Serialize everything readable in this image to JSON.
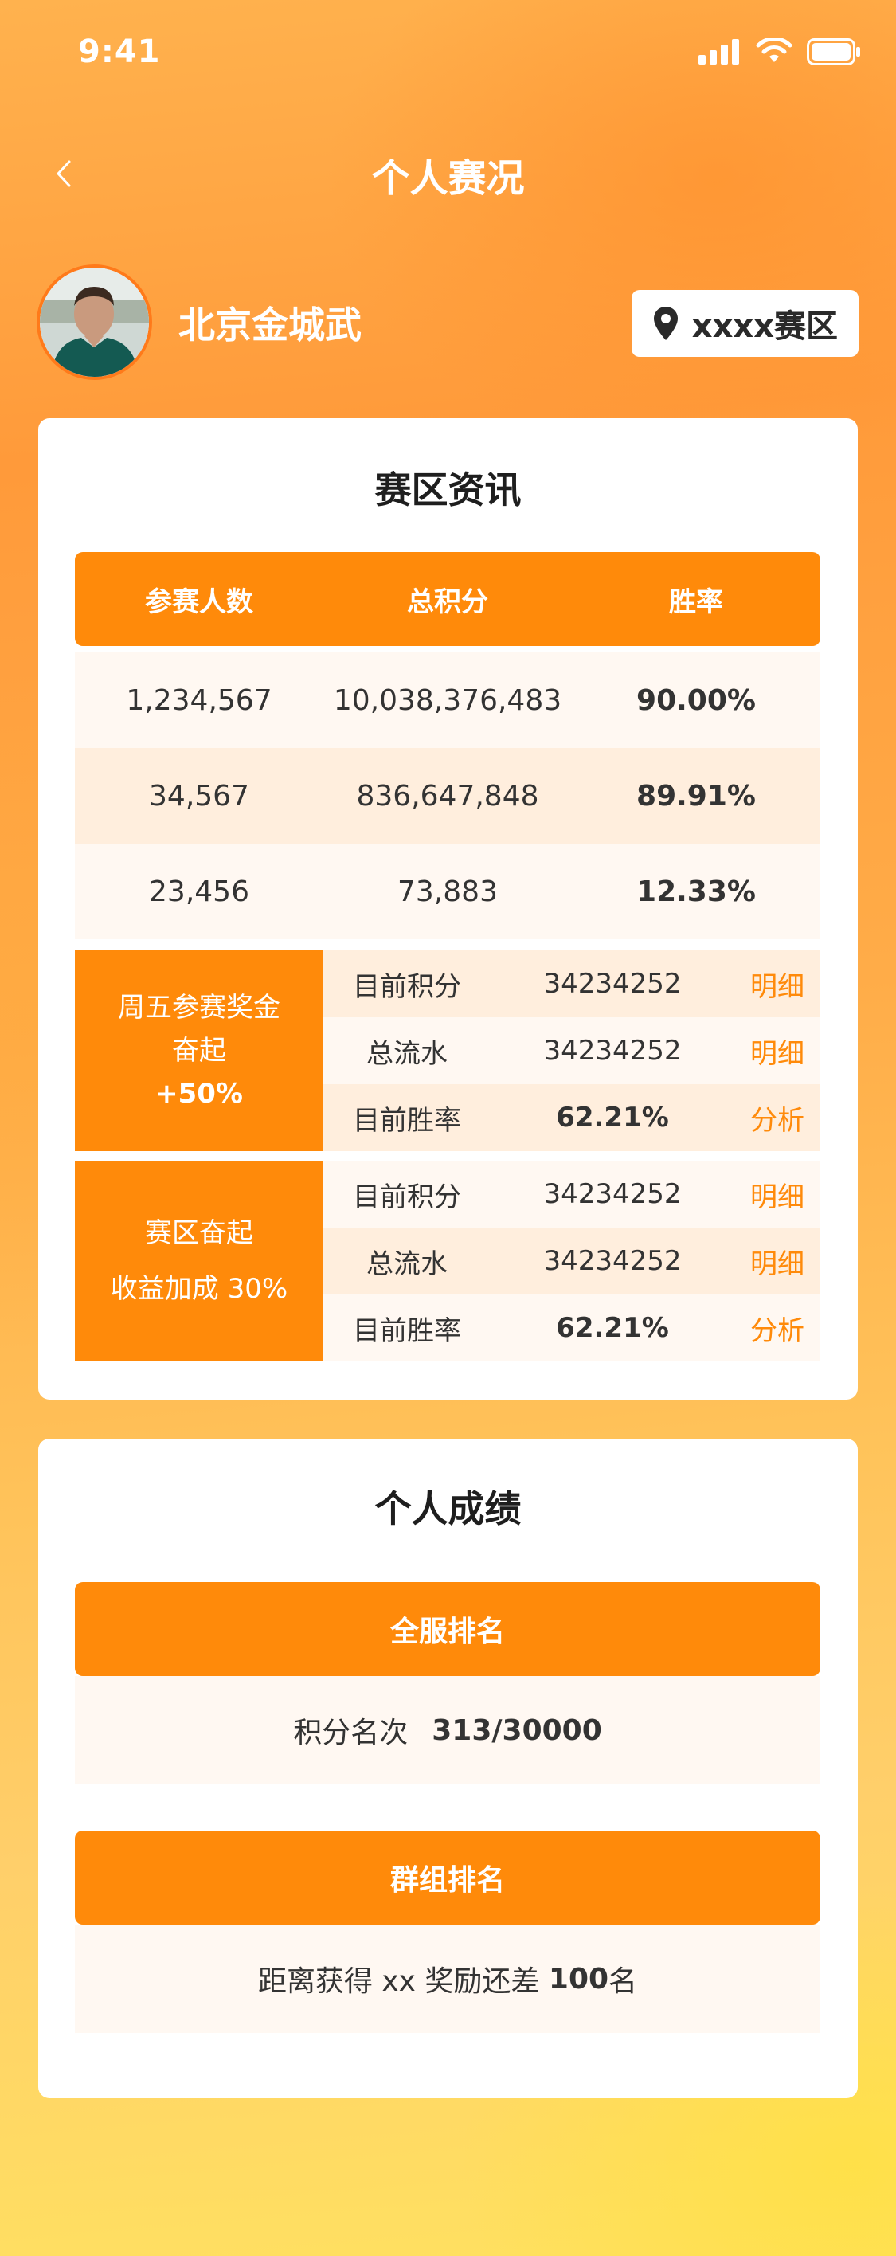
{
  "status_bar": {
    "time": "9:41"
  },
  "nav": {
    "title": "个人赛况"
  },
  "profile": {
    "name": "北京金城武",
    "region": "xxxx赛区"
  },
  "region_info": {
    "title": "赛区资讯",
    "columns": [
      "参赛人数",
      "总积分",
      "胜率"
    ],
    "rows": [
      [
        "1,234,567",
        "10,038,376,483",
        "90.00%"
      ],
      [
        "34,567",
        "836,647,848",
        "89.91%"
      ],
      [
        "23,456",
        "73,883",
        "12.33%"
      ]
    ],
    "promos": [
      {
        "lines": [
          "周五参赛奖金",
          "奋起",
          "+50%"
        ],
        "rows": [
          {
            "label": "目前积分",
            "value": "34234252",
            "link": "明细"
          },
          {
            "label": "总流水",
            "value": "34234252",
            "link": "明细"
          },
          {
            "label": "目前胜率",
            "value": "62.21%",
            "link": "分析"
          }
        ]
      },
      {
        "lines": [
          "赛区奋起",
          "收益加成 30%"
        ],
        "rows": [
          {
            "label": "目前积分",
            "value": "34234252",
            "link": "明细"
          },
          {
            "label": "总流水",
            "value": "34234252",
            "link": "明细"
          },
          {
            "label": "目前胜率",
            "value": "62.21%",
            "link": "分析"
          }
        ]
      }
    ]
  },
  "personal": {
    "title": "个人成绩",
    "global_rank": {
      "header": "全服排名",
      "label": "积分名次",
      "value": "313/30000"
    },
    "group_rank": {
      "header": "群组排名",
      "text_before": "距离获得 xx 奖励还差 ",
      "value": "100",
      "text_after": "名"
    }
  },
  "colors": {
    "accent": "#ff8a0a",
    "row_light": "#fff8f2",
    "row_mid": "#ffeedd"
  },
  "icons": [
    "signal-icon",
    "wifi-icon",
    "battery-icon",
    "back-chevron-icon",
    "location-pin-icon"
  ]
}
